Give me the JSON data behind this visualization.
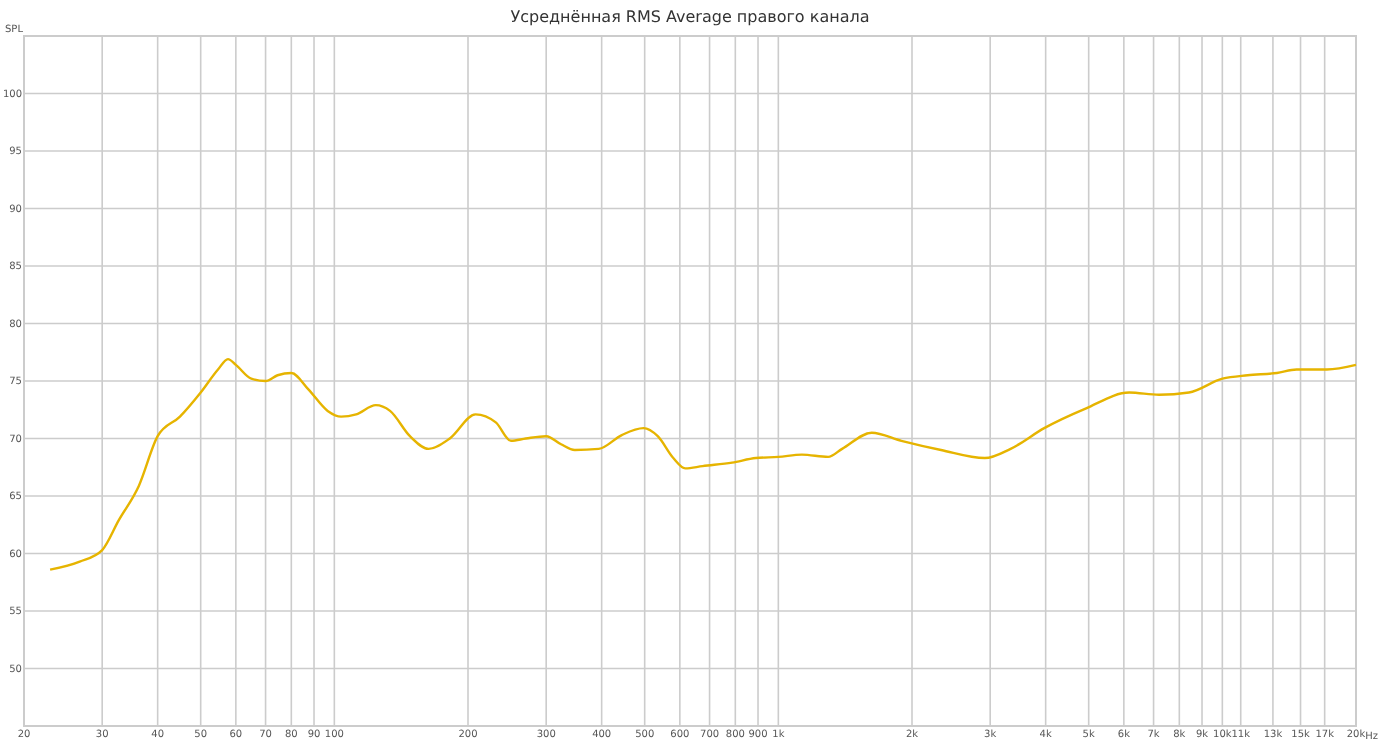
{
  "chart_data": {
    "type": "line",
    "title": "Усреднённая RMS Average правого канала",
    "ylabel": "SPL",
    "x": [
      22.9,
      26.7,
      30,
      32.7,
      36.3,
      40,
      44.9,
      50,
      54.7,
      57.6,
      60,
      65,
      70,
      74.5,
      80,
      87.3,
      96.6,
      103.6,
      112,
      124,
      133.5,
      148,
      163,
      182,
      208,
      231,
      250,
      270,
      300,
      324,
      348,
      394,
      444,
      497,
      535,
      580,
      617,
      675,
      787,
      890,
      1000,
      1130,
      1295,
      1392,
      1623,
      1893,
      2325,
      2917,
      3335,
      3970,
      4920,
      6170,
      7200,
      8410,
      10000,
      11400,
      13270,
      14700,
      17200,
      20000
    ],
    "series": [
      {
        "color": "#e6b400",
        "values": [
          58.6,
          59.3,
          60.3,
          62.9,
          65.9,
          70.2,
          71.9,
          74.0,
          76.0,
          76.9,
          76.4,
          75.2,
          75.0,
          75.5,
          75.7,
          74.3,
          72.4,
          71.9,
          72.1,
          72.9,
          72.4,
          70.2,
          69.1,
          70.0,
          72.1,
          71.4,
          69.8,
          70.0,
          70.2,
          69.5,
          69.0,
          69.1,
          70.3,
          70.9,
          70.2,
          68.3,
          67.4,
          67.6,
          67.9,
          68.3,
          68.4,
          68.6,
          68.4,
          69.1,
          70.5,
          69.8,
          69.0,
          68.3,
          69.1,
          70.9,
          72.6,
          74.0,
          73.8,
          74.0,
          75.2,
          75.5,
          75.7,
          76.0,
          76.0,
          76.4
        ]
      }
    ],
    "log": "x",
    "xlim": [
      20,
      20000
    ],
    "xticks": [
      20,
      30,
      40,
      50,
      60,
      70,
      80,
      90,
      100,
      200,
      300,
      400,
      500,
      600,
      700,
      800,
      900,
      {
        "value": 1000,
        "label": "1k"
      },
      {
        "value": 2000,
        "label": "2k"
      },
      {
        "value": 3000,
        "label": "3k"
      },
      {
        "value": 4000,
        "label": "4k"
      },
      {
        "value": 5000,
        "label": "5k"
      },
      {
        "value": 6000,
        "label": "6k"
      },
      {
        "value": 7000,
        "label": "7k"
      },
      {
        "value": 8000,
        "label": "8k"
      },
      {
        "value": 9000,
        "label": "9k"
      },
      {
        "value": 10000,
        "label": "10k"
      },
      {
        "value": 11000,
        "label": "11k"
      },
      {
        "value": 13000,
        "label": "13k"
      },
      {
        "value": 15000,
        "label": "15k"
      },
      {
        "value": 17000,
        "label": "17k"
      },
      {
        "value": 20000,
        "label": "20k"
      }
    ],
    "xlabel": "Hz",
    "ylim": [
      45,
      105
    ],
    "yticks": [
      50,
      55,
      60,
      65,
      70,
      75,
      80,
      85,
      90,
      95,
      100
    ],
    "grid": true,
    "marker": "none",
    "line_style": "solid"
  }
}
